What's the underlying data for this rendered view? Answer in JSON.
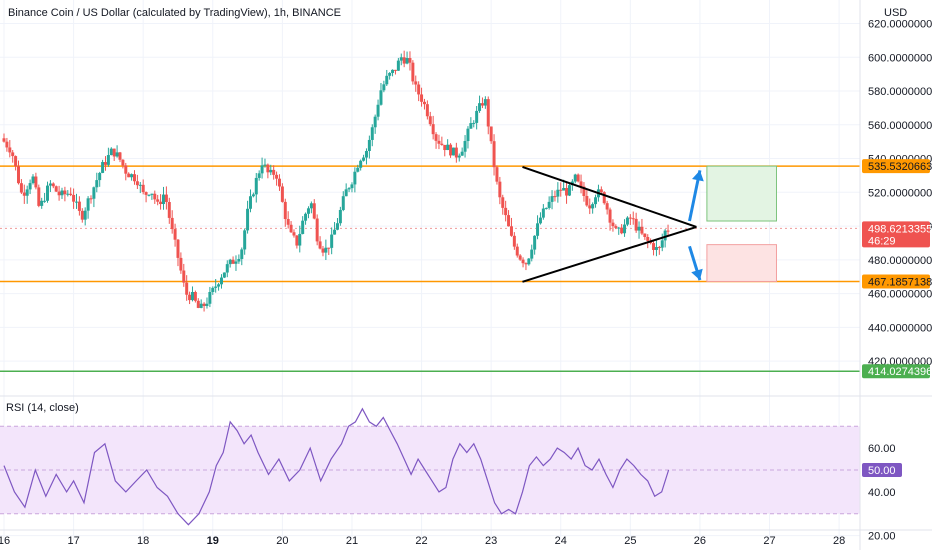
{
  "chart_data": {
    "type": "candlestick",
    "title": "Binance Coin / US Dollar (calculated by TradingView), 1h, BINANCE",
    "currency": "USD",
    "price_axis": {
      "ylim": [
        410,
        628
      ],
      "ticks": [
        "620.0000000",
        "600.0000000",
        "580.0000000",
        "560.0000000",
        "540.0000000",
        "520.0000000",
        "500.0000000",
        "480.0000000",
        "460.0000000",
        "440.0000000",
        "420.0000000"
      ],
      "tick_values": [
        620,
        600,
        580,
        560,
        540,
        520,
        500,
        480,
        460,
        440,
        420
      ]
    },
    "x_axis": {
      "ticks": [
        "16",
        "17",
        "18",
        "19",
        "20",
        "21",
        "22",
        "23",
        "24",
        "25",
        "26",
        "27",
        "28"
      ],
      "bold_ticks": [
        "19"
      ],
      "day_range": [
        16.0,
        28.3
      ]
    },
    "price_path": [
      [
        16.0,
        552
      ],
      [
        16.15,
        545
      ],
      [
        16.3,
        518
      ],
      [
        16.45,
        530
      ],
      [
        16.55,
        510
      ],
      [
        16.7,
        525
      ],
      [
        16.85,
        518
      ],
      [
        17.0,
        520
      ],
      [
        17.15,
        505
      ],
      [
        17.3,
        520
      ],
      [
        17.45,
        535
      ],
      [
        17.6,
        545
      ],
      [
        17.7,
        540
      ],
      [
        17.8,
        532
      ],
      [
        17.95,
        528
      ],
      [
        18.05,
        518
      ],
      [
        18.15,
        522
      ],
      [
        18.25,
        512
      ],
      [
        18.35,
        520
      ],
      [
        18.45,
        498
      ],
      [
        18.55,
        480
      ],
      [
        18.65,
        460
      ],
      [
        18.75,
        458
      ],
      [
        18.85,
        450
      ],
      [
        18.95,
        455
      ],
      [
        19.05,
        462
      ],
      [
        19.15,
        470
      ],
      [
        19.25,
        476
      ],
      [
        19.35,
        480
      ],
      [
        19.45,
        485
      ],
      [
        19.55,
        510
      ],
      [
        19.65,
        525
      ],
      [
        19.75,
        538
      ],
      [
        19.85,
        530
      ],
      [
        19.95,
        532
      ],
      [
        20.05,
        512
      ],
      [
        20.15,
        495
      ],
      [
        20.25,
        490
      ],
      [
        20.35,
        505
      ],
      [
        20.45,
        515
      ],
      [
        20.55,
        492
      ],
      [
        20.65,
        485
      ],
      [
        20.75,
        492
      ],
      [
        20.85,
        505
      ],
      [
        20.95,
        520
      ],
      [
        21.05,
        528
      ],
      [
        21.15,
        540
      ],
      [
        21.25,
        545
      ],
      [
        21.35,
        560
      ],
      [
        21.45,
        580
      ],
      [
        21.55,
        588
      ],
      [
        21.65,
        592
      ],
      [
        21.75,
        600
      ],
      [
        21.85,
        598
      ],
      [
        21.95,
        582
      ],
      [
        22.05,
        575
      ],
      [
        22.15,
        565
      ],
      [
        22.25,
        552
      ],
      [
        22.35,
        548
      ],
      [
        22.45,
        545
      ],
      [
        22.55,
        542
      ],
      [
        22.65,
        548
      ],
      [
        22.75,
        560
      ],
      [
        22.85,
        568
      ],
      [
        22.95,
        576
      ],
      [
        23.05,
        545
      ],
      [
        23.15,
        518
      ],
      [
        23.25,
        505
      ],
      [
        23.35,
        490
      ],
      [
        23.45,
        482
      ],
      [
        23.55,
        478
      ],
      [
        23.65,
        492
      ],
      [
        23.75,
        505
      ],
      [
        23.85,
        512
      ],
      [
        23.95,
        518
      ],
      [
        24.05,
        522
      ],
      [
        24.15,
        520
      ],
      [
        24.25,
        528
      ],
      [
        24.35,
        520
      ],
      [
        24.45,
        512
      ],
      [
        24.55,
        520
      ],
      [
        24.65,
        518
      ],
      [
        24.75,
        505
      ],
      [
        24.85,
        495
      ],
      [
        24.95,
        500
      ],
      [
        25.05,
        505
      ],
      [
        25.15,
        498
      ],
      [
        25.25,
        492
      ],
      [
        25.35,
        489
      ],
      [
        25.45,
        485
      ],
      [
        25.55,
        498
      ]
    ],
    "support_lines": [
      {
        "value": 535.5320663,
        "label": "535.5320663",
        "color": "#ff9800"
      },
      {
        "value": 467.1857138,
        "label": "467.1857138",
        "color": "#ff9800"
      },
      {
        "value": 414.0274396,
        "label": "414.0274396",
        "color": "#4caf50"
      }
    ],
    "last_price": {
      "value": 498.6213355,
      "label": "498.6213355",
      "countdown": "46:29",
      "color": "#ef5350"
    },
    "triangle": {
      "upper": [
        [
          23.45,
          535
        ],
        [
          25.95,
          502
        ]
      ],
      "lower": [
        [
          23.45,
          467
        ],
        [
          25.95,
          497
        ]
      ],
      "apex": [
        25.95,
        499.5
      ]
    },
    "arrows": [
      {
        "from": [
          25.85,
          503
        ],
        "to": [
          26.0,
          533
        ],
        "color": "#1e88e5"
      },
      {
        "from": [
          25.85,
          488
        ],
        "to": [
          26.0,
          468
        ],
        "color": "#1e88e5"
      }
    ],
    "boxes": [
      {
        "x": [
          26.1,
          27.1
        ],
        "y": [
          503,
          535.5
        ],
        "fill": "#e3f4e3",
        "stroke": "#7cc47c"
      },
      {
        "x": [
          26.1,
          27.1
        ],
        "y": [
          467.2,
          489
        ],
        "fill": "#fde3e3",
        "stroke": "#f3a0a0"
      }
    ],
    "rsi": {
      "label": "RSI (14, close)",
      "ylim": [
        18,
        82
      ],
      "ticks": [
        "60.00",
        "40.00",
        "20.00"
      ],
      "tick_values": [
        60,
        40,
        20
      ],
      "band": [
        30,
        70
      ],
      "mid_label": "50.00",
      "mid_value": 50,
      "path": [
        [
          16.0,
          52
        ],
        [
          16.15,
          40
        ],
        [
          16.3,
          33
        ],
        [
          16.45,
          50
        ],
        [
          16.6,
          38
        ],
        [
          16.75,
          48
        ],
        [
          16.9,
          40
        ],
        [
          17.0,
          45
        ],
        [
          17.15,
          35
        ],
        [
          17.3,
          58
        ],
        [
          17.45,
          62
        ],
        [
          17.6,
          45
        ],
        [
          17.75,
          40
        ],
        [
          17.9,
          45
        ],
        [
          18.05,
          50
        ],
        [
          18.2,
          42
        ],
        [
          18.35,
          38
        ],
        [
          18.5,
          30
        ],
        [
          18.65,
          25
        ],
        [
          18.8,
          30
        ],
        [
          18.95,
          40
        ],
        [
          19.05,
          52
        ],
        [
          19.15,
          58
        ],
        [
          19.25,
          72
        ],
        [
          19.35,
          68
        ],
        [
          19.45,
          62
        ],
        [
          19.55,
          66
        ],
        [
          19.65,
          58
        ],
        [
          19.8,
          48
        ],
        [
          19.95,
          55
        ],
        [
          20.1,
          45
        ],
        [
          20.25,
          50
        ],
        [
          20.4,
          60
        ],
        [
          20.55,
          45
        ],
        [
          20.7,
          55
        ],
        [
          20.85,
          62
        ],
        [
          20.95,
          70
        ],
        [
          21.05,
          72
        ],
        [
          21.15,
          78
        ],
        [
          21.25,
          72
        ],
        [
          21.35,
          70
        ],
        [
          21.45,
          74
        ],
        [
          21.55,
          68
        ],
        [
          21.65,
          62
        ],
        [
          21.75,
          55
        ],
        [
          21.85,
          48
        ],
        [
          21.95,
          55
        ],
        [
          22.05,
          50
        ],
        [
          22.15,
          45
        ],
        [
          22.25,
          40
        ],
        [
          22.35,
          42
        ],
        [
          22.45,
          55
        ],
        [
          22.55,
          62
        ],
        [
          22.65,
          58
        ],
        [
          22.75,
          62
        ],
        [
          22.85,
          55
        ],
        [
          22.95,
          45
        ],
        [
          23.05,
          35
        ],
        [
          23.15,
          30
        ],
        [
          23.25,
          32
        ],
        [
          23.35,
          30
        ],
        [
          23.45,
          40
        ],
        [
          23.55,
          52
        ],
        [
          23.65,
          56
        ],
        [
          23.75,
          52
        ],
        [
          23.85,
          55
        ],
        [
          23.95,
          60
        ],
        [
          24.05,
          58
        ],
        [
          24.15,
          55
        ],
        [
          24.25,
          60
        ],
        [
          24.35,
          52
        ],
        [
          24.45,
          50
        ],
        [
          24.55,
          55
        ],
        [
          24.65,
          48
        ],
        [
          24.75,
          42
        ],
        [
          24.85,
          50
        ],
        [
          24.95,
          55
        ],
        [
          25.05,
          52
        ],
        [
          25.15,
          48
        ],
        [
          25.25,
          45
        ],
        [
          25.35,
          38
        ],
        [
          25.45,
          40
        ],
        [
          25.55,
          50
        ]
      ]
    }
  }
}
